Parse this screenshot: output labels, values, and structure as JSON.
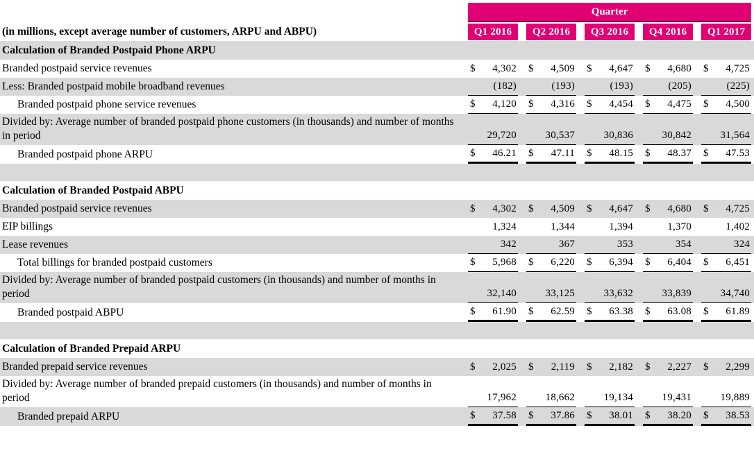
{
  "title": "Quarterly ARPU and ABPU calculation table",
  "colors": {
    "accent_magenta": "#E00074",
    "row_shade": "#D9D9D9",
    "text": "#000000"
  },
  "currency_symbol": "$",
  "header": {
    "quarter_label": "Quarter",
    "units_label": "(in millions, except average number of customers, ARPU and ABPU)",
    "columns": [
      "Q1 2016",
      "Q2 2016",
      "Q3 2016",
      "Q4 2016",
      "Q1 2017"
    ]
  },
  "rows": [
    {
      "type": "section",
      "shaded": true,
      "label": "Calculation of Branded Postpaid Phone ARPU"
    },
    {
      "type": "data",
      "shaded": false,
      "indent": false,
      "dollar": true,
      "rule": "none",
      "label": "Branded postpaid service revenues",
      "values": [
        "4,302",
        "4,509",
        "4,647",
        "4,680",
        "4,725"
      ]
    },
    {
      "type": "data",
      "shaded": true,
      "indent": false,
      "dollar": false,
      "rule": "bottom",
      "label": "Less: Branded postpaid mobile broadband revenues",
      "values": [
        "(182)",
        "(193)",
        "(193)",
        "(205)",
        "(225)"
      ]
    },
    {
      "type": "data",
      "shaded": false,
      "indent": true,
      "dollar": true,
      "rule": "bottom",
      "label": "Branded postpaid phone service revenues",
      "values": [
        "4,120",
        "4,316",
        "4,454",
        "4,475",
        "4,500"
      ]
    },
    {
      "type": "data",
      "shaded": true,
      "indent": false,
      "dollar": false,
      "rule": "bottom",
      "tall": true,
      "label": "Divided by: Average number of branded postpaid phone customers (in thousands) and number of months in period",
      "values": [
        "29,720",
        "30,537",
        "30,836",
        "30,842",
        "31,564"
      ]
    },
    {
      "type": "data",
      "shaded": false,
      "indent": true,
      "dollar": true,
      "rule": "double",
      "label": "Branded postpaid phone ARPU",
      "values": [
        "46.21",
        "47.11",
        "48.15",
        "48.37",
        "47.53"
      ]
    },
    {
      "type": "blank",
      "shaded": true
    },
    {
      "type": "section",
      "shaded": false,
      "label": "Calculation of Branded Postpaid ABPU"
    },
    {
      "type": "data",
      "shaded": true,
      "indent": false,
      "dollar": true,
      "rule": "none",
      "label": "Branded postpaid service revenues",
      "values": [
        "4,302",
        "4,509",
        "4,647",
        "4,680",
        "4,725"
      ]
    },
    {
      "type": "data",
      "shaded": false,
      "indent": false,
      "dollar": false,
      "rule": "none",
      "label": "EIP billings",
      "values": [
        "1,324",
        "1,344",
        "1,394",
        "1,370",
        "1,402"
      ]
    },
    {
      "type": "data",
      "shaded": true,
      "indent": false,
      "dollar": false,
      "rule": "bottom",
      "label": "Lease revenues",
      "values": [
        "342",
        "367",
        "353",
        "354",
        "324"
      ]
    },
    {
      "type": "data",
      "shaded": false,
      "indent": true,
      "dollar": true,
      "rule": "bottom",
      "label": "Total billings for branded postpaid customers",
      "values": [
        "5,968",
        "6,220",
        "6,394",
        "6,404",
        "6,451"
      ]
    },
    {
      "type": "data",
      "shaded": true,
      "indent": false,
      "dollar": false,
      "rule": "bottom",
      "tall": true,
      "label": "Divided by: Average number of branded postpaid customers (in thousands) and number of months in period",
      "values": [
        "32,140",
        "33,125",
        "33,632",
        "33,839",
        "34,740"
      ]
    },
    {
      "type": "data",
      "shaded": false,
      "indent": true,
      "dollar": true,
      "rule": "double",
      "label": "Branded postpaid ABPU",
      "values": [
        "61.90",
        "62.59",
        "63.38",
        "63.08",
        "61.89"
      ]
    },
    {
      "type": "blank",
      "shaded": true
    },
    {
      "type": "section",
      "shaded": false,
      "label": "Calculation of Branded Prepaid ARPU"
    },
    {
      "type": "data",
      "shaded": true,
      "indent": false,
      "dollar": true,
      "rule": "none",
      "label": "Branded prepaid service revenues",
      "values": [
        "2,025",
        "2,119",
        "2,182",
        "2,227",
        "2,299"
      ]
    },
    {
      "type": "data",
      "shaded": false,
      "indent": false,
      "dollar": false,
      "rule": "bottom",
      "tall": true,
      "label": "Divided by: Average number of branded prepaid customers (in thousands) and number of months in period",
      "values": [
        "17,962",
        "18,662",
        "19,134",
        "19,431",
        "19,889"
      ]
    },
    {
      "type": "data",
      "shaded": true,
      "indent": true,
      "dollar": true,
      "rule": "double",
      "label": "Branded prepaid ARPU",
      "values": [
        "37.58",
        "37.86",
        "38.01",
        "38.20",
        "38.53"
      ]
    }
  ]
}
